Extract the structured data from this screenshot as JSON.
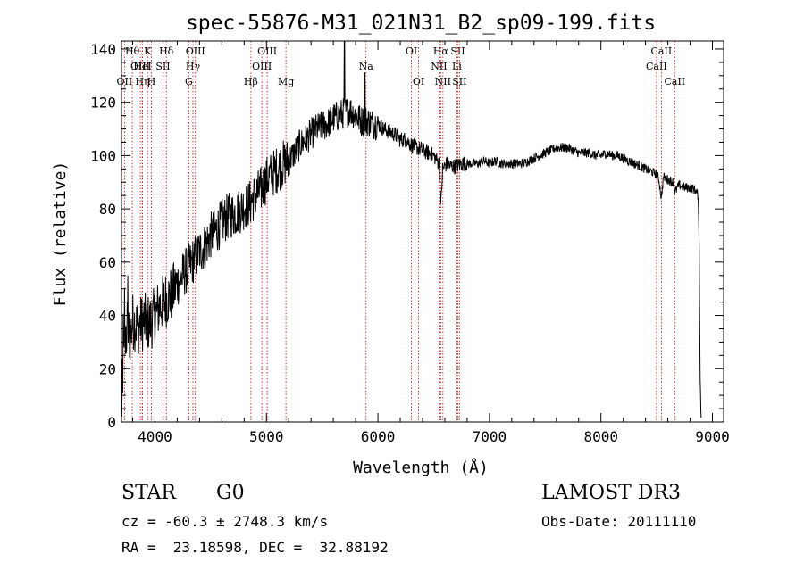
{
  "chart_data": {
    "type": "line",
    "title": "spec-55876-M31_021N31_B2_sp09-199.fits",
    "xlabel": "Wavelength (Å)",
    "ylabel": "Flux (relative)",
    "xlim": [
      3700,
      9100
    ],
    "ylim": [
      0,
      143
    ],
    "xticks": [
      4000,
      5000,
      6000,
      7000,
      8000,
      9000
    ],
    "yticks": [
      0,
      20,
      40,
      60,
      80,
      100,
      120,
      140
    ],
    "series": [
      {
        "name": "flux",
        "x": [
          3700,
          3720,
          3750,
          3780,
          3800,
          3850,
          3900,
          3950,
          4000,
          4050,
          4100,
          4150,
          4200,
          4250,
          4300,
          4350,
          4400,
          4450,
          4500,
          4550,
          4600,
          4650,
          4700,
          4750,
          4800,
          4850,
          4900,
          4950,
          5000,
          5050,
          5100,
          5150,
          5200,
          5250,
          5300,
          5350,
          5400,
          5450,
          5500,
          5550,
          5600,
          5650,
          5700,
          5750,
          5800,
          5850,
          5900,
          5950,
          6000,
          6050,
          6100,
          6150,
          6200,
          6250,
          6300,
          6350,
          6400,
          6450,
          6500,
          6550,
          6563,
          6580,
          6620,
          6650,
          6700,
          6750,
          6800,
          6850,
          6900,
          6950,
          7000,
          7050,
          7100,
          7150,
          7200,
          7250,
          7300,
          7350,
          7400,
          7450,
          7500,
          7550,
          7600,
          7650,
          7700,
          7750,
          7800,
          7850,
          7900,
          7950,
          8000,
          8050,
          8100,
          8150,
          8200,
          8250,
          8300,
          8350,
          8400,
          8450,
          8500,
          8520,
          8542,
          8560,
          8600,
          8650,
          8662,
          8700,
          8750,
          8800,
          8850,
          8870,
          8880,
          8890,
          8900
        ],
        "values": [
          3,
          25,
          35,
          32,
          38,
          36,
          38,
          37,
          40,
          44,
          46,
          48,
          52,
          55,
          58,
          61,
          64,
          66,
          70,
          72,
          75,
          77,
          78,
          79,
          81,
          82,
          85,
          87,
          91,
          93,
          95,
          97,
          98,
          101,
          104,
          106,
          108,
          110,
          111,
          112,
          114,
          115,
          116,
          117,
          115,
          113,
          113,
          112,
          112,
          110,
          109,
          108,
          106,
          106,
          104,
          103,
          102,
          101,
          100,
          97,
          80,
          95,
          97,
          96,
          96,
          97,
          97,
          97,
          97,
          98,
          97,
          98,
          97,
          97,
          97,
          97,
          97,
          98,
          99,
          100,
          101,
          102,
          103,
          103,
          103,
          102,
          101,
          101,
          101,
          100,
          100,
          101,
          100,
          100,
          99,
          98,
          97,
          96,
          95,
          94,
          93,
          91,
          84,
          92,
          91,
          90,
          86,
          89,
          88,
          88,
          87,
          85,
          72,
          15,
          0
        ]
      }
    ],
    "lines": [
      {
        "name": "OII",
        "x": 3727,
        "row": 2
      },
      {
        "name": "Hθ",
        "x": 3797,
        "row": 0
      },
      {
        "name": "OIII",
        "x": 3869,
        "row": 1
      },
      {
        "name": "Hη",
        "x": 3889,
        "row": 2
      },
      {
        "name": "HeI",
        "x": 3889,
        "row": 1
      },
      {
        "name": "K",
        "x": 3934,
        "row": 0
      },
      {
        "name": "H",
        "x": 3969,
        "row": 2
      },
      {
        "name": "SII",
        "x": 4072,
        "row": 1
      },
      {
        "name": "Hδ",
        "x": 4102,
        "row": 0
      },
      {
        "name": "G",
        "x": 4304,
        "row": 2
      },
      {
        "name": "Hγ",
        "x": 4341,
        "row": 1
      },
      {
        "name": "OIII",
        "x": 4363,
        "row": 0
      },
      {
        "name": "Hβ",
        "x": 4861,
        "row": 2
      },
      {
        "name": "OIII",
        "x": 4959,
        "row": 1
      },
      {
        "name": "OIII",
        "x": 5007,
        "row": 0
      },
      {
        "name": "Mg",
        "x": 5175,
        "row": 2
      },
      {
        "name": "Na",
        "x": 5893,
        "row": 1
      },
      {
        "name": "OI",
        "x": 6300,
        "row": 0
      },
      {
        "name": "OI",
        "x": 6364,
        "row": 2
      },
      {
        "name": "NII",
        "x": 6548,
        "row": 1
      },
      {
        "name": "Hα",
        "x": 6563,
        "row": 0
      },
      {
        "name": "NII",
        "x": 6583,
        "row": 2
      },
      {
        "name": "Li",
        "x": 6708,
        "row": 1
      },
      {
        "name": "SII",
        "x": 6716,
        "row": 0
      },
      {
        "name": "SII",
        "x": 6731,
        "row": 2
      },
      {
        "name": "CaII",
        "x": 8498,
        "row": 1
      },
      {
        "name": "CaII",
        "x": 8542,
        "row": 0
      },
      {
        "name": "CaII",
        "x": 8662,
        "row": 2
      }
    ]
  },
  "info": {
    "object_class": "STAR",
    "subclass": "G0",
    "survey": "LAMOST DR3",
    "redshift_line": "cz = -60.3 ± 2748.3 km/s",
    "obs_date_line": "Obs-Date: 20111110",
    "coords_line": "RA =  23.18598, DEC =  32.88192"
  },
  "colors": {
    "axis": "#000000",
    "spectrum": "#000000",
    "line_marker": "#cc0000"
  }
}
